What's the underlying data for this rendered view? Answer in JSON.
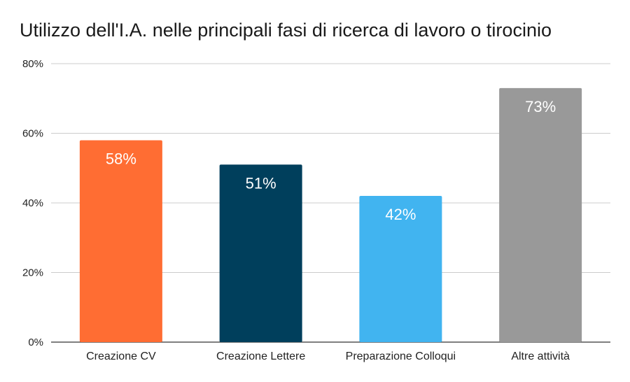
{
  "chart_data": {
    "type": "bar",
    "title": "Utilizzo dell'I.A. nelle principali fasi di ricerca di lavoro o tirocinio",
    "categories": [
      "Creazione CV",
      "Creazione Lettere",
      "Preparazione Colloqui",
      "Altre attività"
    ],
    "values": [
      58,
      51,
      42,
      73
    ],
    "data_labels": [
      "58%",
      "51%",
      "42%",
      "73%"
    ],
    "colors": [
      "#ff6d33",
      "#003f5c",
      "#41b4f0",
      "#999999"
    ],
    "ylim": [
      0,
      80
    ],
    "yticks": [
      0,
      20,
      40,
      60,
      80
    ],
    "ytick_labels": [
      "0%",
      "20%",
      "40%",
      "60%",
      "80%"
    ],
    "grid": true,
    "legend": "none"
  }
}
